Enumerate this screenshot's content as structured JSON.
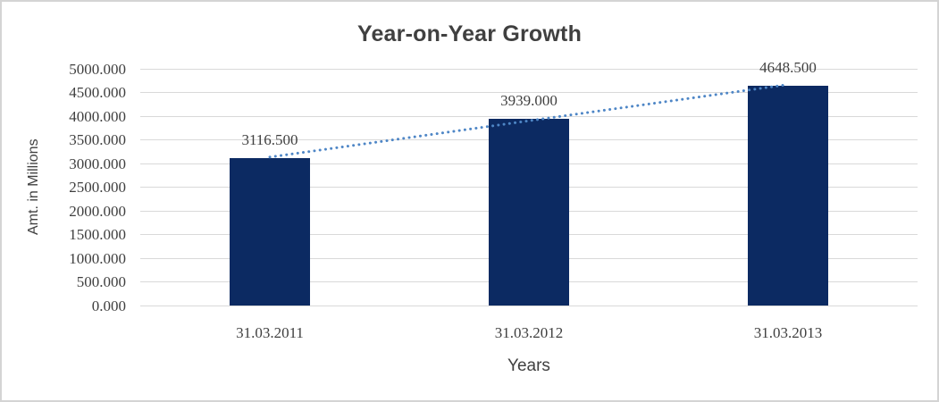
{
  "chart_data": {
    "type": "bar",
    "title": "Year-on-Year Growth",
    "xlabel": "Years",
    "ylabel": "Amt. in Millions",
    "categories": [
      "31.03.2011",
      "31.03.2012",
      "31.03.2013"
    ],
    "values": [
      3116.5,
      3939.0,
      4648.5
    ],
    "data_labels": [
      "3116.500",
      "3939.000",
      "4648.500"
    ],
    "ylim": [
      0,
      5000
    ],
    "ytick_values": [
      0,
      500,
      1000,
      1500,
      2000,
      2500,
      3000,
      3500,
      4000,
      4500,
      5000
    ],
    "ytick_labels": [
      "0.000",
      "500.000",
      "1000.000",
      "1500.000",
      "2000.000",
      "2500.000",
      "3000.000",
      "3500.000",
      "4000.000",
      "4500.000",
      "5000.000"
    ],
    "grid": true,
    "legend": "none",
    "trendline": {
      "type": "linear",
      "style": "dotted"
    },
    "colors": {
      "bar": "#0c2a62",
      "trendline": "#4e86c6",
      "gridline": "#d9d9d9",
      "text": "#3f3f3f",
      "title_text": "#404040",
      "background": "#ffffff",
      "frame_border": "#d4d4d4"
    }
  }
}
